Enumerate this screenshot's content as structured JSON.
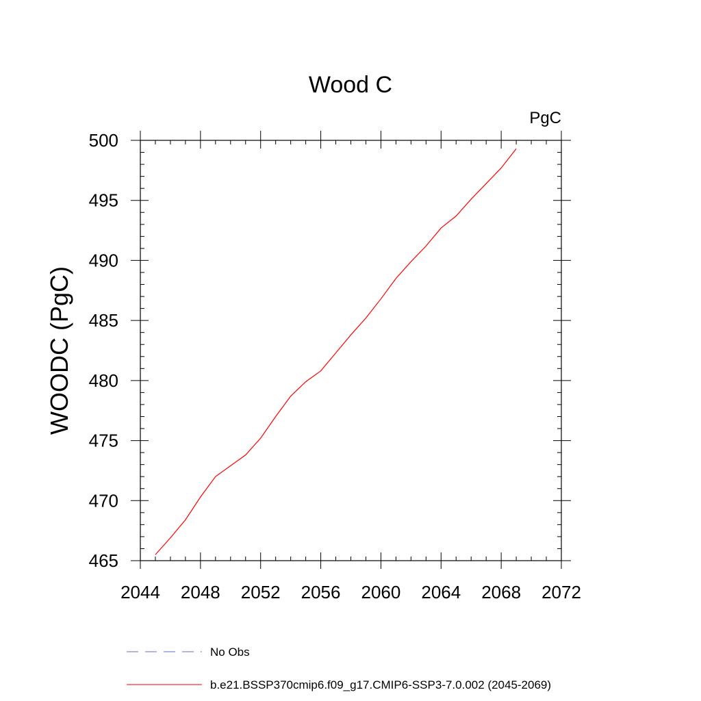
{
  "chart_data": {
    "type": "line",
    "title": "Wood C",
    "units": "PgC",
    "xlabel": "",
    "ylabel": "WOODC  (PgC)",
    "xlim": [
      2044,
      2072
    ],
    "ylim": [
      465,
      500
    ],
    "xticks": [
      2044,
      2048,
      2052,
      2056,
      2060,
      2064,
      2068,
      2072
    ],
    "yticks": [
      465,
      470,
      475,
      480,
      485,
      490,
      495,
      500
    ],
    "xtick_labels": [
      "2044",
      "2048",
      "2052",
      "2056",
      "2060",
      "2064",
      "2068",
      "2072"
    ],
    "ytick_labels": [
      "465",
      "470",
      "475",
      "480",
      "485",
      "490",
      "495",
      "500"
    ],
    "grid": false,
    "legend_position": "bottom",
    "series": [
      {
        "name": "No Obs",
        "color": "#6a6ad8",
        "dash": "dashed",
        "x": [],
        "values": []
      },
      {
        "name": "b.e21.BSSP370cmip6.f09_g17.CMIP6-SSP3-7.0.002 (2045-2069)",
        "color": "#ff0000",
        "dash": "solid",
        "x": [
          2045,
          2046,
          2047,
          2048,
          2049,
          2050,
          2051,
          2052,
          2053,
          2054,
          2055,
          2056,
          2057,
          2058,
          2059,
          2060,
          2061,
          2062,
          2063,
          2064,
          2065,
          2066,
          2067,
          2068,
          2069
        ],
        "values": [
          465.5,
          466.9,
          468.4,
          470.3,
          472.0,
          472.9,
          473.8,
          475.2,
          477.0,
          478.7,
          479.9,
          480.8,
          482.3,
          483.8,
          485.2,
          486.8,
          488.5,
          489.9,
          491.2,
          492.7,
          493.7,
          495.1,
          496.4,
          497.7,
          499.3
        ]
      }
    ]
  }
}
